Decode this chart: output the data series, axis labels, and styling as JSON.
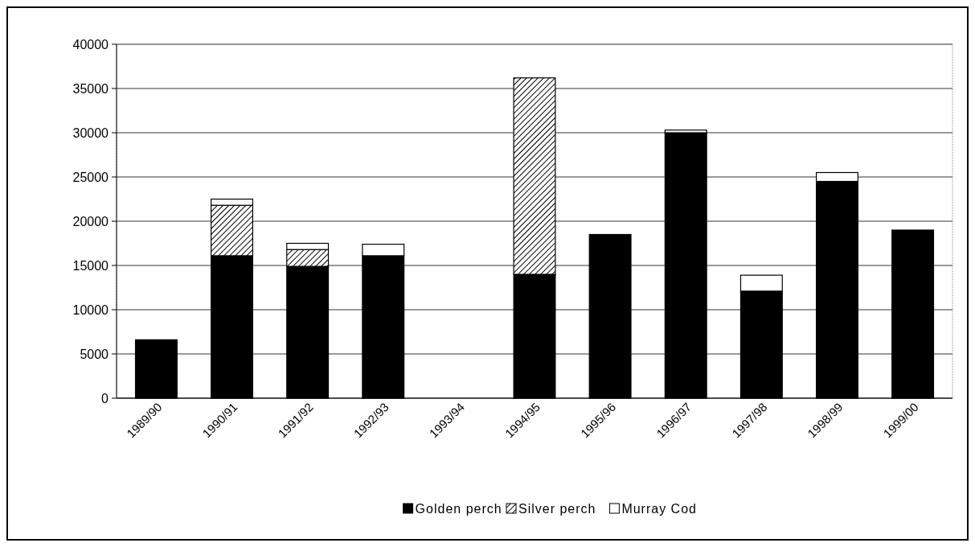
{
  "chart_data": {
    "type": "bar",
    "stacked": true,
    "categories": [
      "1989/90",
      "1990/91",
      "1991/92",
      "1992/93",
      "1993/94",
      "1994/95",
      "1995/96",
      "1996/97",
      "1997/98",
      "1998/99",
      "1999/00"
    ],
    "series": [
      {
        "name": "Golden perch",
        "color": "#000000",
        "values": [
          6600,
          16100,
          14900,
          16100,
          null,
          14000,
          18500,
          30000,
          12100,
          24500,
          19000
        ]
      },
      {
        "name": "Silver perch",
        "color": "#000000",
        "values": [
          null,
          5700,
          1900,
          null,
          null,
          22200,
          null,
          null,
          null,
          null,
          null
        ]
      },
      {
        "name": "Murray Cod",
        "color": "#ffffff",
        "values": [
          null,
          700,
          700,
          1300,
          null,
          null,
          null,
          300,
          1800,
          1000,
          null
        ]
      }
    ],
    "ylim": [
      0,
      40000
    ],
    "yticks": [
      0,
      5000,
      10000,
      15000,
      20000,
      25000,
      30000,
      35000,
      40000
    ],
    "grid": "y",
    "legend": "bottom"
  }
}
